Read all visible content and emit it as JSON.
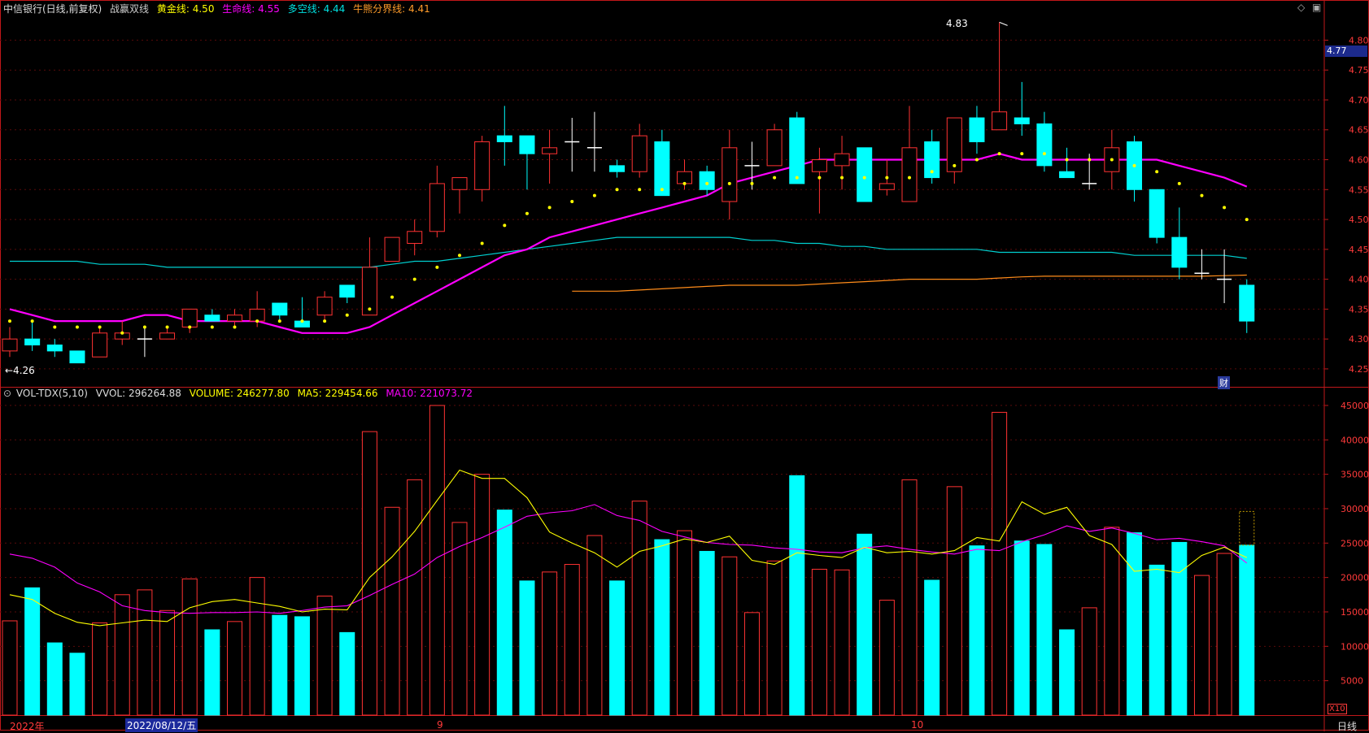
{
  "header": {
    "stock_title": "中信银行(日线,前复权)",
    "indicator_name": "战赢双线",
    "gold_label": "黄金线:",
    "gold_value": "4.50",
    "life_label": "生命线:",
    "life_value": "4.55",
    "longshort_label": "多空线:",
    "longshort_value": "4.44",
    "bullbear_label": "牛熊分界线:",
    "bullbear_value": "4.41"
  },
  "volume_header": {
    "indicator": "VOL-TDX(5,10)",
    "vvol_label": "VVOL:",
    "vvol_value": "296264.88",
    "volume_label": "VOLUME:",
    "volume_value": "246277.80",
    "ma5_label": "MA5:",
    "ma5_value": "229454.66",
    "ma10_label": "MA10:",
    "ma10_value": "221073.72"
  },
  "labels": {
    "max_price": "4.83",
    "min_price": "←4.26",
    "current_price": "4.77",
    "finance_marker": "财",
    "x10": "X10",
    "period": "日线",
    "dates": [
      "2022年",
      "2022/08/12/五",
      "9",
      "10"
    ]
  },
  "colors": {
    "up": "#ff3232",
    "down": "#00ffff",
    "cross": "#ffffff",
    "life": "#ff00ff",
    "longshort": "#00d0d0",
    "bullbear": "#ff8c1a",
    "gold": "#ffff00",
    "axis": "#c0171a",
    "ma5": "#ffff00",
    "ma10": "#ff00ff"
  },
  "chart_data": [
    {
      "type": "candlestick",
      "ylim": [
        4.22,
        4.84
      ],
      "yticks": [
        "4.25",
        "4.30",
        "4.35",
        "4.40",
        "4.45",
        "4.50",
        "4.55",
        "4.60",
        "4.65",
        "4.70",
        "4.75",
        "4.80"
      ],
      "candles": [
        [
          4.28,
          4.32,
          4.27,
          4.3
        ],
        [
          4.3,
          4.33,
          4.28,
          4.29
        ],
        [
          4.29,
          4.3,
          4.27,
          4.28
        ],
        [
          4.28,
          4.28,
          4.26,
          4.26
        ],
        [
          4.27,
          4.32,
          4.27,
          4.31
        ],
        [
          4.3,
          4.33,
          4.29,
          4.31
        ],
        [
          4.3,
          4.32,
          4.27,
          4.3
        ],
        [
          4.3,
          4.32,
          4.3,
          4.31
        ],
        [
          4.32,
          4.35,
          4.31,
          4.35
        ],
        [
          4.34,
          4.35,
          4.33,
          4.33
        ],
        [
          4.33,
          4.35,
          4.32,
          4.34
        ],
        [
          4.33,
          4.38,
          4.32,
          4.35
        ],
        [
          4.36,
          4.36,
          4.33,
          4.34
        ],
        [
          4.33,
          4.37,
          4.32,
          4.32
        ],
        [
          4.34,
          4.38,
          4.33,
          4.37
        ],
        [
          4.39,
          4.39,
          4.36,
          4.37
        ],
        [
          4.34,
          4.47,
          4.34,
          4.42
        ],
        [
          4.43,
          4.47,
          4.43,
          4.47
        ],
        [
          4.46,
          4.5,
          4.44,
          4.48
        ],
        [
          4.48,
          4.59,
          4.47,
          4.56
        ],
        [
          4.55,
          4.57,
          4.51,
          4.57
        ],
        [
          4.55,
          4.64,
          4.53,
          4.63
        ],
        [
          4.64,
          4.69,
          4.59,
          4.63
        ],
        [
          4.64,
          4.64,
          4.55,
          4.61
        ],
        [
          4.61,
          4.65,
          4.56,
          4.62
        ],
        [
          4.63,
          4.67,
          4.58,
          4.63
        ],
        [
          4.62,
          4.68,
          4.58,
          4.62
        ],
        [
          4.59,
          4.6,
          4.57,
          4.58
        ],
        [
          4.58,
          4.66,
          4.57,
          4.64
        ],
        [
          4.63,
          4.65,
          4.54,
          4.54
        ],
        [
          4.56,
          4.6,
          4.55,
          4.58
        ],
        [
          4.58,
          4.59,
          4.54,
          4.55
        ],
        [
          4.53,
          4.65,
          4.5,
          4.62
        ],
        [
          4.59,
          4.63,
          4.55,
          4.59
        ],
        [
          4.59,
          4.66,
          4.59,
          4.65
        ],
        [
          4.67,
          4.68,
          4.56,
          4.56
        ],
        [
          4.58,
          4.62,
          4.51,
          4.6
        ],
        [
          4.59,
          4.64,
          4.55,
          4.61
        ],
        [
          4.62,
          4.62,
          4.53,
          4.53
        ],
        [
          4.55,
          4.6,
          4.54,
          4.56
        ],
        [
          4.53,
          4.69,
          4.53,
          4.62
        ],
        [
          4.63,
          4.65,
          4.56,
          4.57
        ],
        [
          4.58,
          4.67,
          4.56,
          4.67
        ],
        [
          4.67,
          4.69,
          4.61,
          4.63
        ],
        [
          4.65,
          4.83,
          4.65,
          4.68
        ],
        [
          4.67,
          4.73,
          4.64,
          4.66
        ],
        [
          4.66,
          4.68,
          4.58,
          4.59
        ],
        [
          4.58,
          4.62,
          4.57,
          4.57
        ],
        [
          4.56,
          4.61,
          4.55,
          4.56
        ],
        [
          4.58,
          4.65,
          4.55,
          4.62
        ],
        [
          4.63,
          4.64,
          4.53,
          4.55
        ],
        [
          4.55,
          4.55,
          4.46,
          4.47
        ],
        [
          4.47,
          4.52,
          4.4,
          4.42
        ],
        [
          4.41,
          4.45,
          4.4,
          4.41
        ],
        [
          4.4,
          4.45,
          4.36,
          4.4
        ],
        [
          4.39,
          4.4,
          4.31,
          4.33
        ]
      ],
      "life_line": [
        4.35,
        4.34,
        4.33,
        4.33,
        4.33,
        4.33,
        4.34,
        4.34,
        4.33,
        4.33,
        4.33,
        4.33,
        4.32,
        4.31,
        4.31,
        4.31,
        4.32,
        4.34,
        4.36,
        4.38,
        4.4,
        4.42,
        4.44,
        4.45,
        4.47,
        4.48,
        4.49,
        4.5,
        4.51,
        4.52,
        4.53,
        4.54,
        4.56,
        4.57,
        4.58,
        4.59,
        4.6,
        4.6,
        4.6,
        4.6,
        4.6,
        4.6,
        4.6,
        4.6,
        4.61,
        4.6,
        4.6,
        4.6,
        4.6,
        4.6,
        4.6,
        4.6,
        4.59,
        4.58,
        4.57,
        4.555
      ],
      "gold_dots": [
        4.33,
        4.33,
        4.32,
        4.32,
        4.32,
        4.31,
        4.32,
        4.32,
        4.32,
        4.32,
        4.32,
        4.33,
        4.33,
        4.33,
        4.33,
        4.34,
        4.35,
        4.37,
        4.4,
        4.42,
        4.44,
        4.46,
        4.49,
        4.51,
        4.52,
        4.53,
        4.54,
        4.55,
        4.55,
        4.55,
        4.56,
        4.56,
        4.56,
        4.56,
        4.57,
        4.57,
        4.57,
        4.57,
        4.57,
        4.57,
        4.57,
        4.58,
        4.59,
        4.6,
        4.61,
        4.61,
        4.61,
        4.6,
        4.6,
        4.6,
        4.59,
        4.58,
        4.56,
        4.54,
        4.52,
        4.5
      ],
      "longshort_line": [
        4.43,
        4.43,
        4.43,
        4.43,
        4.425,
        4.425,
        4.425,
        4.42,
        4.42,
        4.42,
        4.42,
        4.42,
        4.42,
        4.42,
        4.42,
        4.42,
        4.42,
        4.425,
        4.43,
        4.43,
        4.435,
        4.44,
        4.445,
        4.45,
        4.455,
        4.46,
        4.465,
        4.47,
        4.47,
        4.47,
        4.47,
        4.47,
        4.47,
        4.465,
        4.465,
        4.46,
        4.46,
        4.455,
        4.455,
        4.45,
        4.45,
        4.45,
        4.45,
        4.45,
        4.445,
        4.445,
        4.445,
        4.445,
        4.445,
        4.445,
        4.44,
        4.44,
        4.44,
        4.44,
        4.44,
        4.435
      ],
      "bullbear_start": 25,
      "bullbear_line": [
        4.38,
        4.38,
        4.38,
        4.382,
        4.384,
        4.386,
        4.388,
        4.39,
        4.39,
        4.39,
        4.39,
        4.392,
        4.394,
        4.396,
        4.398,
        4.4,
        4.4,
        4.4,
        4.4,
        4.402,
        4.404,
        4.405,
        4.405,
        4.405,
        4.405,
        4.405,
        4.405,
        4.405,
        4.405,
        4.406,
        4.407
      ]
    },
    {
      "type": "bar",
      "ylim": [
        0,
        47000
      ],
      "yticks": [
        5000,
        10000,
        15000,
        20000,
        25000,
        30000,
        35000,
        40000,
        45000
      ],
      "volumes": [
        13700,
        18500,
        10500,
        9000,
        13400,
        17500,
        18200,
        15200,
        19800,
        12400,
        13600,
        20000,
        14500,
        14300,
        17300,
        12000,
        41200,
        30200,
        34200,
        45000,
        28000,
        35000,
        29800,
        19500,
        20800,
        21900,
        26100,
        19500,
        31100,
        25500,
        26800,
        23800,
        23000,
        14900,
        22400,
        34800,
        21200,
        21100,
        26300,
        16700,
        34200,
        19600,
        33200,
        24600,
        44000,
        25300,
        24800,
        12400,
        15600,
        27300,
        26500,
        21800,
        25100,
        20300,
        23500,
        24700
      ],
      "ma5": [
        17500,
        16800,
        14800,
        13500,
        13000,
        13400,
        13800,
        13600,
        15600,
        16500,
        16800,
        16300,
        15800,
        15000,
        15400,
        15300,
        20000,
        23000,
        26700,
        31200,
        35600,
        34400,
        34400,
        31600,
        26600,
        25000,
        23600,
        21500,
        23800,
        24600,
        25600,
        25100,
        26000,
        22500,
        21900,
        23600,
        23200,
        22900,
        24400,
        23600,
        23800,
        23400,
        23900,
        25800,
        25300,
        31000,
        29200,
        30200,
        26100,
        24800,
        20900,
        21200,
        20700,
        23200,
        24400,
        22900
      ],
      "ma10": [
        23400,
        22800,
        21500,
        19200,
        17900,
        15900,
        15200,
        14900,
        14800,
        14900,
        14900,
        15000,
        14800,
        15200,
        15700,
        15900,
        17400,
        19000,
        20500,
        22900,
        24500,
        25800,
        27300,
        28900,
        29400,
        29700,
        30600,
        29000,
        28300,
        26700,
        25900,
        25100,
        24800,
        24700,
        24300,
        24100,
        23700,
        23600,
        24300,
        24600,
        24100,
        23700,
        23400,
        24100,
        23900,
        25200,
        26200,
        27500,
        26700,
        27200,
        26400,
        25500,
        25700,
        25200,
        24600,
        22100
      ],
      "prev_volume_outline": 29600
    }
  ]
}
